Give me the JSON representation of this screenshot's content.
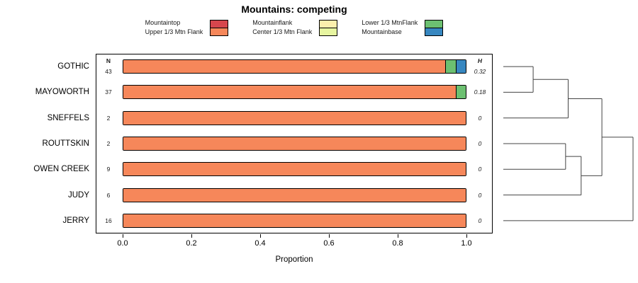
{
  "title": "Mountains: competing",
  "palette": {
    "Mountaintop": "#D6464D",
    "Upper 1/3 Mtn Flank": "#F6875A",
    "Mountainflank": "#FCEFAD",
    "Center 1/3 Mtn Flank": "#E7F5A0",
    "Lower 1/3 MtnFlank": "#6CC071",
    "Mountainbase": "#3787C0"
  },
  "legend": {
    "columns": [
      [
        "Mountaintop",
        "Upper 1/3 Mtn Flank"
      ],
      [
        "Mountainflank",
        "Center 1/3 Mtn Flank"
      ],
      [
        "Lower 1/3 MtnFlank",
        "Mountainbase"
      ]
    ]
  },
  "chart_data": {
    "type": "bar",
    "subtype": "horizontal-stacked-proportion-with-dendrogram",
    "title": "Mountains: competing",
    "xlabel": "Proportion",
    "xlim": [
      0,
      1
    ],
    "xticks": [
      0,
      0.2,
      0.4,
      0.6,
      0.8,
      1
    ],
    "xtick_labels": [
      "0.0",
      "0.2",
      "0.4",
      "0.6",
      "0.8",
      "1.0"
    ],
    "n_header": "N",
    "h_header": "H",
    "categories": [
      "GOTHIC",
      "MAYOWORTH",
      "SNEFFELS",
      "ROUTTSKIN",
      "OWEN CREEK",
      "JUDY",
      "JERRY"
    ],
    "n_values": [
      "43",
      "37",
      "2",
      "2",
      "9",
      "6",
      "16"
    ],
    "h_values": [
      "0.32",
      "0.18",
      "0",
      "0",
      "0",
      "0",
      "0"
    ],
    "series_keys": [
      "Mountaintop",
      "Upper 1/3 Mtn Flank",
      "Mountainflank",
      "Center 1/3 Mtn Flank",
      "Lower 1/3 MtnFlank",
      "Mountainbase"
    ],
    "rows": [
      {
        "category": "GOTHIC",
        "segments": [
          {
            "key": "Upper 1/3 Mtn Flank",
            "value": 0.94
          },
          {
            "key": "Lower 1/3 MtnFlank",
            "value": 0.03
          },
          {
            "key": "Mountainbase",
            "value": 0.03
          }
        ]
      },
      {
        "category": "MAYOWORTH",
        "segments": [
          {
            "key": "Upper 1/3 Mtn Flank",
            "value": 0.97
          },
          {
            "key": "Lower 1/3 MtnFlank",
            "value": 0.03
          }
        ]
      },
      {
        "category": "SNEFFELS",
        "segments": [
          {
            "key": "Upper 1/3 Mtn Flank",
            "value": 1
          }
        ]
      },
      {
        "category": "ROUTTSKIN",
        "segments": [
          {
            "key": "Upper 1/3 Mtn Flank",
            "value": 1
          }
        ]
      },
      {
        "category": "OWEN CREEK",
        "segments": [
          {
            "key": "Upper 1/3 Mtn Flank",
            "value": 1
          }
        ]
      },
      {
        "category": "JUDY",
        "segments": [
          {
            "key": "Upper 1/3 Mtn Flank",
            "value": 1
          }
        ]
      },
      {
        "category": "JERRY",
        "segments": [
          {
            "key": "Upper 1/3 Mtn Flank",
            "value": 1
          }
        ]
      }
    ],
    "dendrogram": {
      "orientation": "right",
      "merges": [
        {
          "a": "GOTHIC",
          "b": "MAYOWORTH",
          "h": 0.23
        },
        {
          "a": "#0",
          "b": "SNEFFELS",
          "h": 0.5
        },
        {
          "a": "ROUTTSKIN",
          "b": "OWEN CREEK",
          "h": 0.48
        },
        {
          "a": "#2",
          "b": "JUDY",
          "h": 0.6
        },
        {
          "a": "#1",
          "b": "#3",
          "h": 0.76
        },
        {
          "a": "#4",
          "b": "JERRY",
          "h": 1.0
        }
      ]
    }
  }
}
